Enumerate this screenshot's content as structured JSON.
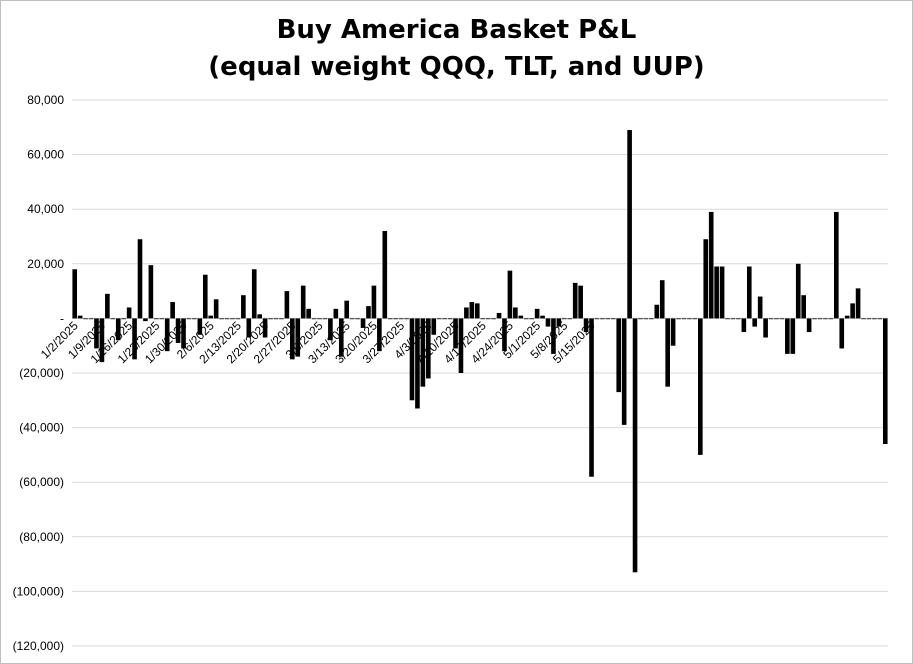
{
  "chart_data": {
    "type": "bar",
    "title": "Buy America Basket P&L",
    "subtitle": "(equal weight QQQ, TLT, and UUP)",
    "xlabel": "",
    "ylabel": "",
    "ylim": [
      -120000,
      80000
    ],
    "yticks": [
      80000,
      60000,
      40000,
      20000,
      0,
      -20000,
      -40000,
      -60000,
      -80000,
      -100000,
      -120000
    ],
    "ytick_labels": [
      "80,000",
      "60,000",
      "40,000",
      "20,000",
      "-",
      "(20,000)",
      "(40,000)",
      "(60,000)",
      "(80,000)",
      "(100,000)",
      "(120,000)"
    ],
    "grid": "horizontal",
    "legend": "none",
    "bar_color": "#000000",
    "x_tick_labels": [
      {
        "label": "1/2/2025",
        "index": 0
      },
      {
        "label": "1/9/2025",
        "index": 5
      },
      {
        "label": "1/16/2025",
        "index": 10
      },
      {
        "label": "1/23/2025",
        "index": 15
      },
      {
        "label": "1/30/2025",
        "index": 20
      },
      {
        "label": "2/6/2025",
        "index": 25
      },
      {
        "label": "2/13/2025",
        "index": 30
      },
      {
        "label": "2/20/2025",
        "index": 35
      },
      {
        "label": "2/27/2025",
        "index": 40
      },
      {
        "label": "3/6/2025",
        "index": 45
      },
      {
        "label": "3/13/2025",
        "index": 50
      },
      {
        "label": "3/20/2025",
        "index": 55
      },
      {
        "label": "3/27/2025",
        "index": 60
      },
      {
        "label": "4/3/2025",
        "index": 65
      },
      {
        "label": "4/10/2025",
        "index": 70
      },
      {
        "label": "4/17/2025",
        "index": 75
      },
      {
        "label": "4/24/2025",
        "index": 80
      },
      {
        "label": "5/1/2025",
        "index": 85
      },
      {
        "label": "5/8/2025",
        "index": 90
      },
      {
        "label": "5/15/2025",
        "index": 95
      }
    ],
    "values": [
      18000,
      1000,
      0,
      0,
      -11000,
      -16000,
      9000,
      0,
      -8000,
      0,
      4000,
      -15000,
      29000,
      -1000,
      19500,
      0,
      0,
      -12000,
      6000,
      -9000,
      -11000,
      0,
      0,
      -6000,
      16000,
      1000,
      7000,
      0,
      0,
      0,
      0,
      8500,
      -7000,
      18000,
      1500,
      -7000,
      0,
      0,
      0,
      10000,
      -15000,
      -14000,
      12000,
      3500,
      0,
      0,
      0,
      -8000,
      3500,
      -14000,
      6500,
      0,
      0,
      -3500,
      4500,
      12000,
      -12000,
      32000,
      0,
      0,
      0,
      0,
      -30000,
      -33000,
      -25000,
      -22000,
      -6000,
      0,
      0,
      0,
      -11000,
      -20000,
      4000,
      6000,
      5500,
      0,
      0,
      0,
      2000,
      -12000,
      17500,
      4000,
      1000,
      0,
      0,
      3500,
      1000,
      -3000,
      -13000,
      -3000,
      0,
      0,
      13000,
      12000,
      -5000,
      -58000,
      0,
      0,
      0,
      0,
      -27000,
      -39000,
      69000,
      -93000,
      0,
      0,
      0,
      5000,
      14000,
      -25000,
      -10000,
      0,
      0,
      0,
      0,
      -50000,
      29000,
      39000,
      19000,
      19000,
      0,
      0,
      0,
      -5000,
      19000,
      -3000,
      8000,
      -7000,
      0,
      0,
      0,
      -13000,
      -13000,
      20000,
      8500,
      -5000,
      0,
      0,
      0,
      0,
      39000,
      -11000,
      1000,
      5500,
      11000,
      0,
      0,
      0,
      0,
      -46000
    ]
  }
}
